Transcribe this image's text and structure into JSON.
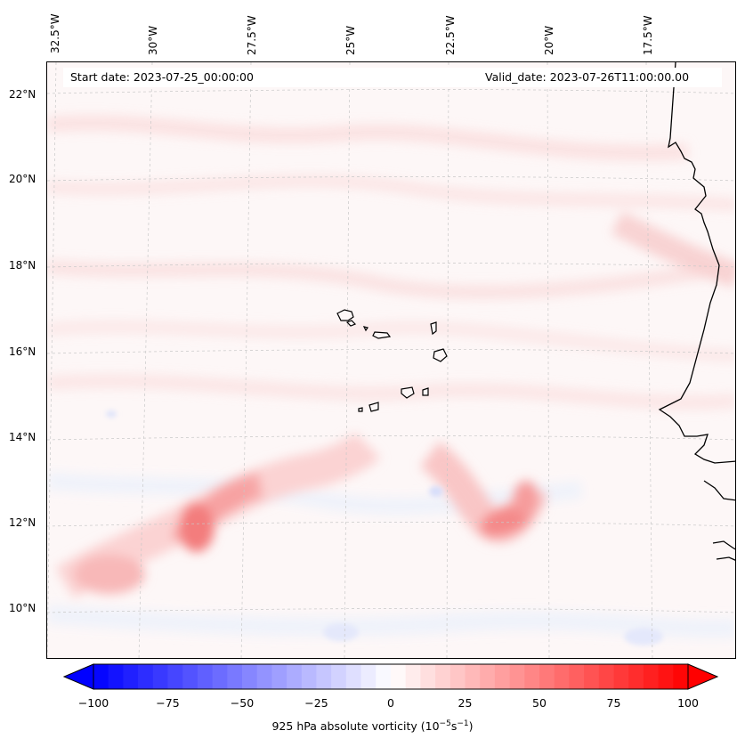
{
  "map": {
    "start_date": "Start date: 2023-07-25_00:00:00",
    "valid_date": "Valid_date: 2023-07-26T11:00:00.00",
    "longitude_labels": [
      "32.5°W",
      "30°W",
      "27.5°W",
      "25°W",
      "22.5°W",
      "20°W",
      "17.5°W"
    ],
    "latitude_labels": [
      "22°N",
      "20°N",
      "18°N",
      "16°N",
      "14°N",
      "12°N",
      "10°N"
    ]
  },
  "colorbar": {
    "label_prefix": "925 hPa absolute vorticity (10",
    "label_exp1": "−5",
    "label_mid": "s",
    "label_exp2": "−1",
    "label_suffix": ")",
    "ticks": [
      "−100",
      "−75",
      "−50",
      "−25",
      "0",
      "25",
      "50",
      "75",
      "100"
    ],
    "min": -100,
    "max": 100,
    "levels": 40,
    "colors": {
      "negative": "#0000ff",
      "neutral": "#ffffff",
      "positive": "#ff0000"
    }
  }
}
